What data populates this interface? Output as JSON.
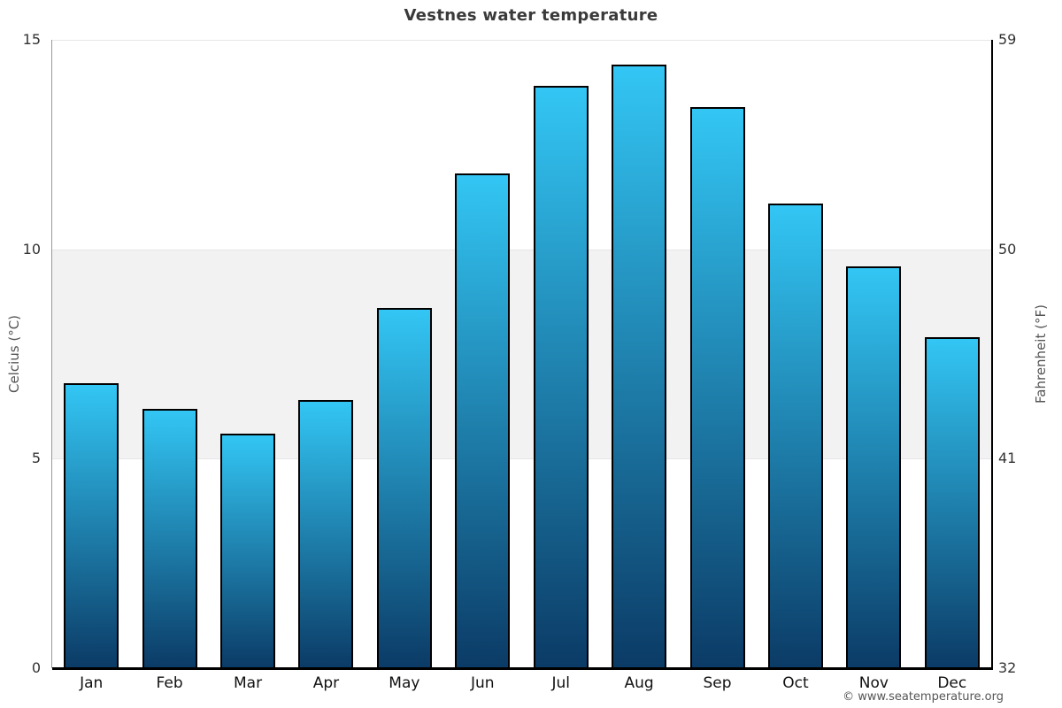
{
  "page_title": "Vestnes water temperature",
  "chart_data": {
    "type": "bar",
    "title": "Vestnes water temperature",
    "categories": [
      "Jan",
      "Feb",
      "Mar",
      "Apr",
      "May",
      "Jun",
      "Jul",
      "Aug",
      "Sep",
      "Oct",
      "Nov",
      "Dec"
    ],
    "values": [
      6.8,
      6.2,
      5.6,
      6.4,
      8.6,
      11.8,
      13.9,
      14.4,
      13.4,
      11.1,
      9.6,
      7.9
    ],
    "series_name": "Water temperature",
    "ylabel_left": "Celcius (°C)",
    "ylabel_right": "Fahrenheit (°F)",
    "ylim": [
      0,
      15
    ],
    "ylim_right": [
      32,
      59
    ],
    "yticks_left": [
      0,
      5,
      10,
      15
    ],
    "yticks_right": [
      32,
      41,
      50,
      59
    ],
    "grid": true,
    "legend": "none",
    "plot_band": {
      "from": 5,
      "to": 10,
      "color": "#f2f2f2"
    },
    "bar_color_top": "#33C6F4",
    "bar_color_bottom": "#0B3B66",
    "bar_border_color": "#000000",
    "credit": "© www.seatemperature.org"
  },
  "colors": {
    "title_text": "#3a3a3a",
    "tick_label": "#333333",
    "month_label": "#111111",
    "axis_title": "#555555",
    "left_axis_line": "#999999",
    "right_axis_line": "#000000",
    "bottom_axis_line": "#000000",
    "gridline": "#e6e6e6",
    "background": "#ffffff"
  }
}
